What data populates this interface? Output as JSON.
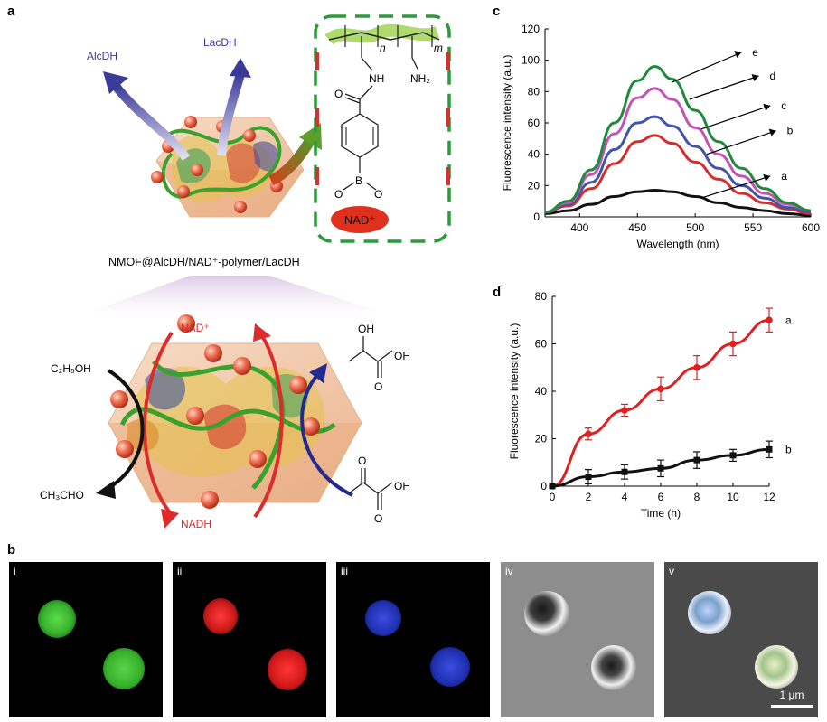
{
  "panels": {
    "a": "a",
    "b": "b",
    "c": "c",
    "d": "d"
  },
  "schematic": {
    "enzyme_left": "AlcDH",
    "enzyme_right": "LacDH",
    "construct_label": "NMOF@AlcDH/NAD⁺-polymer/LacDH",
    "polymer_n": "n",
    "polymer_m": "m",
    "group_nh": "NH",
    "group_nh2": "NH₂",
    "group_o": "O",
    "atom_b": "B",
    "atom_o1": "O",
    "atom_o2": "O",
    "cofactor": "NAD⁺",
    "cycle_top": "NAD⁺",
    "cycle_bottom": "NADH",
    "substrate": "C₂H₅OH",
    "product": "CH₃CHO",
    "lactate_oh1": "OH",
    "lactate_oh2": "OH",
    "lactate_o": "O",
    "pyruvate_o": "O",
    "pyruvate_oh": "OH",
    "pyruvate_o2": "O"
  },
  "micrographs": {
    "tags": [
      "i",
      "ii",
      "iii",
      "iv",
      "v"
    ],
    "scale_bar": "1 μm"
  },
  "chart_data": [
    {
      "panel": "c",
      "type": "line",
      "xlabel": "Wavelength (nm)",
      "ylabel": "Fluorescence intensity (a.u.)",
      "xlim": [
        370,
        600
      ],
      "ylim": [
        0,
        120
      ],
      "xticks": [
        400,
        450,
        500,
        550,
        600
      ],
      "yticks": [
        0,
        20,
        40,
        60,
        80,
        100,
        120
      ],
      "x": [
        370,
        390,
        410,
        430,
        450,
        465,
        480,
        500,
        520,
        540,
        560,
        580,
        600
      ],
      "series": [
        {
          "name": "a",
          "color": "#111111",
          "values": [
            2,
            4,
            8,
            13,
            16,
            17,
            16,
            13,
            9,
            6,
            4,
            2,
            1
          ]
        },
        {
          "name": "b",
          "color": "#d72c2c",
          "values": [
            3,
            7,
            18,
            34,
            48,
            52,
            47,
            35,
            24,
            15,
            9,
            5,
            2
          ]
        },
        {
          "name": "c",
          "color": "#4054a8",
          "values": [
            3,
            8,
            22,
            43,
            60,
            64,
            58,
            45,
            31,
            20,
            12,
            6,
            3
          ]
        },
        {
          "name": "d",
          "color": "#c553b5",
          "values": [
            3,
            9,
            27,
            53,
            76,
            82,
            75,
            57,
            40,
            26,
            15,
            8,
            4
          ]
        },
        {
          "name": "e",
          "color": "#1f8a3b",
          "values": [
            3,
            10,
            30,
            60,
            87,
            96,
            88,
            68,
            48,
            31,
            18,
            9,
            4
          ]
        }
      ]
    },
    {
      "panel": "d",
      "type": "line",
      "xlabel": "Time (h)",
      "ylabel": "Fluorescence intensity (a.u.)",
      "xlim": [
        0,
        12
      ],
      "ylim": [
        0,
        80
      ],
      "xticks": [
        0,
        2,
        4,
        6,
        8,
        10,
        12
      ],
      "yticks": [
        0,
        20,
        40,
        60,
        80
      ],
      "x": [
        0,
        2,
        4,
        6,
        8,
        10,
        12
      ],
      "series": [
        {
          "name": "a",
          "color": "#e02020",
          "values": [
            0,
            22,
            32,
            41,
            50,
            60,
            70
          ],
          "errors": [
            0,
            2.5,
            2.5,
            5,
            5,
            5,
            5
          ]
        },
        {
          "name": "b",
          "color": "#111111",
          "values": [
            0,
            4,
            6,
            7.5,
            11,
            13,
            15.5
          ],
          "errors": [
            0,
            3,
            3,
            3.5,
            3.5,
            2.5,
            3.5
          ]
        }
      ]
    }
  ]
}
